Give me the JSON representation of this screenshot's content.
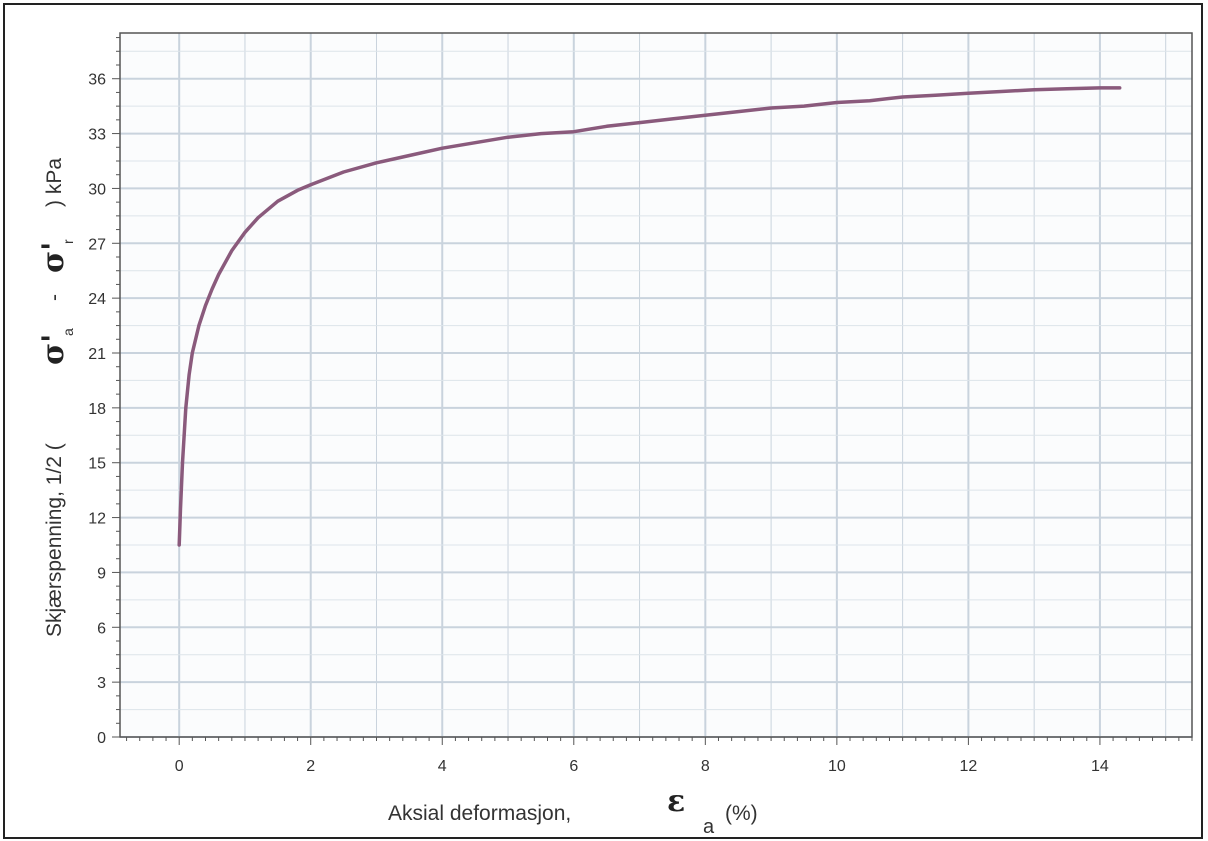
{
  "chart_data": {
    "type": "line",
    "title": "",
    "xlabel": "Aksial deformasjon,",
    "xlabel_symbol": "ε",
    "xlabel_subscript": "a",
    "xlabel_unit": "(%)",
    "ylabel": "Skjærspenning, 1/2 (",
    "ylabel_sym1": "σ'",
    "ylabel_sub1": "a",
    "ylabel_minus": "-",
    "ylabel_sym2": "σ'",
    "ylabel_sub2": "r",
    "ylabel_unit": ") kPa",
    "xlim": [
      -0.9,
      15.4
    ],
    "ylim": [
      0,
      38.5
    ],
    "xticks": [
      0,
      2,
      4,
      6,
      8,
      10,
      12,
      14
    ],
    "yticks": [
      0,
      3,
      6,
      9,
      12,
      15,
      18,
      21,
      24,
      27,
      30,
      33,
      36
    ],
    "grid": true,
    "line_color": "#8a5a7c",
    "series": [
      {
        "x": [
          0.0,
          0.02,
          0.05,
          0.1,
          0.15,
          0.2,
          0.3,
          0.4,
          0.5,
          0.6,
          0.8,
          1.0,
          1.2,
          1.5,
          1.8,
          2.0,
          2.5,
          3.0,
          3.5,
          4.0,
          4.5,
          5.0,
          5.5,
          6.0,
          6.5,
          7.0,
          7.5,
          8.0,
          8.5,
          9.0,
          9.5,
          10.0,
          10.5,
          11.0,
          11.5,
          12.0,
          12.5,
          13.0,
          13.5,
          14.0,
          14.3
        ],
        "y": [
          10.5,
          12.5,
          15.0,
          18.0,
          19.8,
          21.0,
          22.5,
          23.6,
          24.5,
          25.3,
          26.6,
          27.6,
          28.4,
          29.3,
          29.9,
          30.2,
          30.9,
          31.4,
          31.8,
          32.2,
          32.5,
          32.8,
          33.0,
          33.1,
          33.4,
          33.6,
          33.8,
          34.0,
          34.2,
          34.4,
          34.5,
          34.7,
          34.8,
          35.0,
          35.1,
          35.2,
          35.3,
          35.4,
          35.45,
          35.5,
          35.5
        ]
      }
    ]
  }
}
